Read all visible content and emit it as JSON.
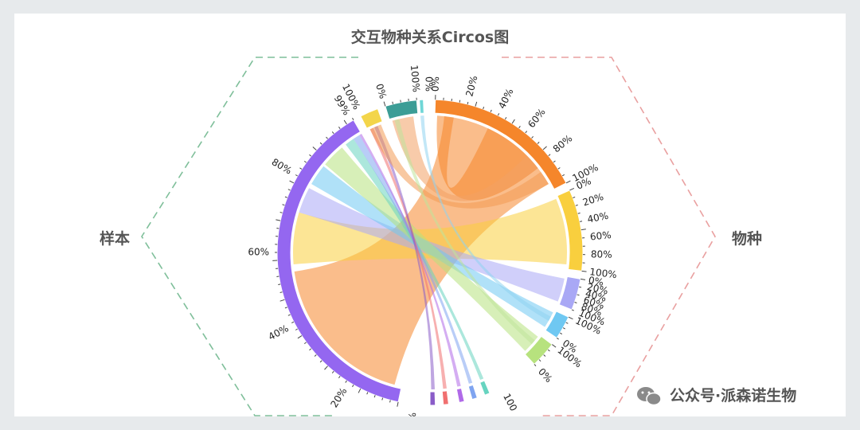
{
  "title": "交互物种关系Circos图",
  "left_label": "样本",
  "right_label": "物种",
  "watermark": "公众号·派森诺生物",
  "colors": {
    "left_dash": "#7fbf9a",
    "right_dash": "#e9a0a0",
    "orange": "#f5862b",
    "yellow": "#f9cf3e",
    "lavender": "#a9a8f5",
    "skyblue": "#6fc8f2",
    "lightgreen": "#b7e27e",
    "purple": "#9467f0",
    "teal": "#3c9d96",
    "gold": "#f3d54a"
  },
  "chart_data": {
    "type": "chord",
    "tick_percent_labels": [
      "0%",
      "20%",
      "40%",
      "60%",
      "80%",
      "100%"
    ],
    "sample_ticks": [
      "20%",
      "40%",
      "60%",
      "80%",
      "99%"
    ],
    "top_ticks": [
      "100%",
      "0%",
      "100%",
      "0%"
    ],
    "bottom_ticks": [
      "0%",
      "100"
    ]
  }
}
